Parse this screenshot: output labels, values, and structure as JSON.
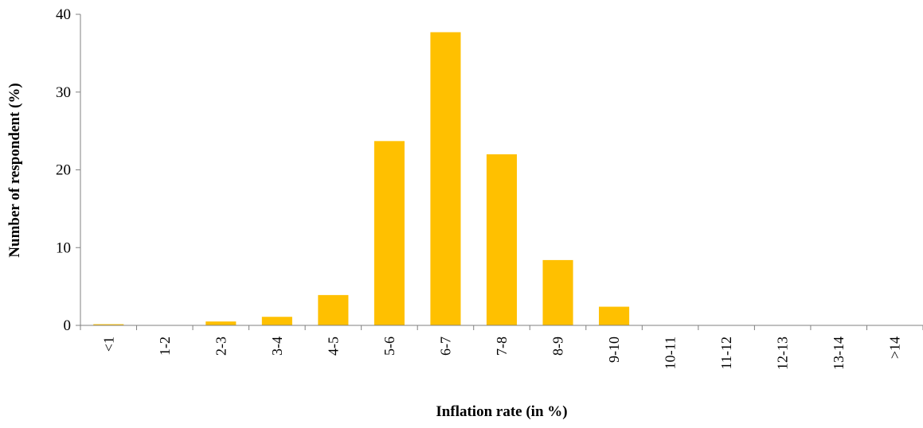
{
  "chart_data": {
    "type": "bar",
    "title": "",
    "xlabel": "Inflation rate (in %)",
    "ylabel": "Number of respondent (%)",
    "categories": [
      "<1",
      "1-2",
      "2-3",
      "3-4",
      "4-5",
      "5-6",
      "6-7",
      "7-8",
      "8-9",
      "9-10",
      "10-11",
      "11-12",
      "12-13",
      "13-14",
      ">14"
    ],
    "values": [
      0.15,
      0,
      0.5,
      1.1,
      3.9,
      23.7,
      37.7,
      22.0,
      8.4,
      2.4,
      0,
      0,
      0,
      0,
      0
    ],
    "ylim": [
      0,
      40
    ],
    "yticks": [
      "0",
      "10",
      "20",
      "30",
      "40"
    ],
    "grid": false,
    "legend": "none",
    "bar_color": "#FFC000"
  }
}
